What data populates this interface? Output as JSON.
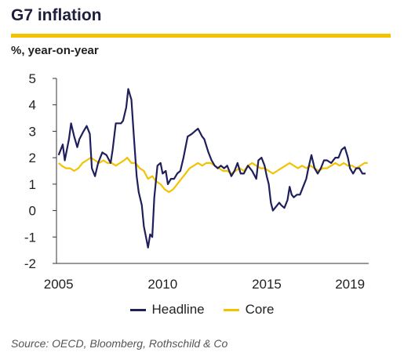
{
  "header": {
    "title": "G7 inflation",
    "subtitle": "%, year-on-year"
  },
  "footer": {
    "source": "Source: OECD, Bloomberg, Rothschild & Co"
  },
  "colors": {
    "headline": "#1f1f5c",
    "core": "#f4c200",
    "rule": "#f4c200",
    "axis": "#333333"
  },
  "chart_data": {
    "type": "line",
    "x_axis": {
      "type": "time",
      "ticks": [
        2005,
        2010,
        2015,
        2019
      ],
      "tick_labels": [
        "2005",
        "2010",
        "2015",
        "2019"
      ],
      "xlim": [
        2004.9,
        2019.9
      ]
    },
    "y_axis": {
      "ticks": [
        5,
        4,
        3,
        2,
        1,
        0,
        -1,
        -2
      ],
      "tick_labels": [
        "5",
        "4",
        "3",
        "2",
        "1",
        "0",
        "-1",
        "-2"
      ],
      "ylim": [
        -2,
        5
      ]
    },
    "grid": false,
    "legend_position": "bottom",
    "series": [
      {
        "name": "Headline",
        "color": "#1f1f5c",
        "points": [
          [
            2005.0,
            2.1
          ],
          [
            2005.2,
            2.5
          ],
          [
            2005.3,
            1.9
          ],
          [
            2005.5,
            2.7
          ],
          [
            2005.6,
            3.3
          ],
          [
            2005.75,
            2.8
          ],
          [
            2005.9,
            2.4
          ],
          [
            2006.0,
            2.7
          ],
          [
            2006.2,
            3.0
          ],
          [
            2006.35,
            3.2
          ],
          [
            2006.5,
            2.9
          ],
          [
            2006.6,
            1.6
          ],
          [
            2006.75,
            1.3
          ],
          [
            2006.9,
            1.8
          ],
          [
            2007.1,
            2.2
          ],
          [
            2007.3,
            2.1
          ],
          [
            2007.5,
            1.8
          ],
          [
            2007.6,
            2.3
          ],
          [
            2007.75,
            3.3
          ],
          [
            2007.9,
            3.3
          ],
          [
            2008.0,
            3.3
          ],
          [
            2008.1,
            3.4
          ],
          [
            2008.25,
            3.9
          ],
          [
            2008.35,
            4.6
          ],
          [
            2008.5,
            4.2
          ],
          [
            2008.6,
            3.0
          ],
          [
            2008.75,
            1.3
          ],
          [
            2008.85,
            0.7
          ],
          [
            2009.0,
            0.2
          ],
          [
            2009.1,
            -0.6
          ],
          [
            2009.2,
            -1.0
          ],
          [
            2009.3,
            -1.4
          ],
          [
            2009.4,
            -0.9
          ],
          [
            2009.5,
            -1.0
          ],
          [
            2009.6,
            0.5
          ],
          [
            2009.75,
            1.7
          ],
          [
            2009.9,
            1.8
          ],
          [
            2010.0,
            1.4
          ],
          [
            2010.15,
            1.5
          ],
          [
            2010.25,
            1.0
          ],
          [
            2010.4,
            1.2
          ],
          [
            2010.55,
            1.2
          ],
          [
            2010.7,
            1.4
          ],
          [
            2010.85,
            1.5
          ],
          [
            2011.0,
            2.0
          ],
          [
            2011.2,
            2.8
          ],
          [
            2011.4,
            2.9
          ],
          [
            2011.55,
            3.0
          ],
          [
            2011.7,
            3.1
          ],
          [
            2011.9,
            2.8
          ],
          [
            2012.0,
            2.7
          ],
          [
            2012.2,
            2.2
          ],
          [
            2012.35,
            1.9
          ],
          [
            2012.5,
            1.7
          ],
          [
            2012.65,
            1.6
          ],
          [
            2012.8,
            1.7
          ],
          [
            2012.95,
            1.6
          ],
          [
            2013.1,
            1.7
          ],
          [
            2013.3,
            1.3
          ],
          [
            2013.45,
            1.5
          ],
          [
            2013.6,
            1.8
          ],
          [
            2013.75,
            1.4
          ],
          [
            2013.9,
            1.4
          ],
          [
            2014.1,
            1.7
          ],
          [
            2014.3,
            1.5
          ],
          [
            2014.5,
            1.2
          ],
          [
            2014.6,
            1.9
          ],
          [
            2014.75,
            2.0
          ],
          [
            2014.9,
            1.7
          ],
          [
            2015.0,
            1.3
          ],
          [
            2015.1,
            1.0
          ],
          [
            2015.2,
            0.3
          ],
          [
            2015.3,
            0.0
          ],
          [
            2015.4,
            0.1
          ],
          [
            2015.5,
            0.2
          ],
          [
            2015.6,
            0.3
          ],
          [
            2015.7,
            0.2
          ],
          [
            2015.85,
            0.1
          ],
          [
            2016.0,
            0.4
          ],
          [
            2016.1,
            0.9
          ],
          [
            2016.2,
            0.6
          ],
          [
            2016.3,
            0.5
          ],
          [
            2016.45,
            0.6
          ],
          [
            2016.6,
            0.6
          ],
          [
            2016.75,
            0.9
          ],
          [
            2016.9,
            1.2
          ],
          [
            2017.0,
            1.6
          ],
          [
            2017.15,
            2.1
          ],
          [
            2017.3,
            1.6
          ],
          [
            2017.45,
            1.4
          ],
          [
            2017.6,
            1.6
          ],
          [
            2017.75,
            1.9
          ],
          [
            2017.9,
            1.9
          ],
          [
            2018.1,
            1.8
          ],
          [
            2018.3,
            2.0
          ],
          [
            2018.45,
            2.0
          ],
          [
            2018.6,
            2.3
          ],
          [
            2018.75,
            2.4
          ],
          [
            2018.9,
            2.0
          ],
          [
            2019.0,
            1.6
          ],
          [
            2019.15,
            1.4
          ],
          [
            2019.3,
            1.6
          ],
          [
            2019.45,
            1.6
          ],
          [
            2019.6,
            1.4
          ],
          [
            2019.75,
            1.4
          ]
        ]
      },
      {
        "name": "Core",
        "color": "#f4c200",
        "points": [
          [
            2005.0,
            1.8
          ],
          [
            2005.15,
            1.7
          ],
          [
            2005.35,
            1.6
          ],
          [
            2005.55,
            1.6
          ],
          [
            2005.75,
            1.5
          ],
          [
            2005.95,
            1.6
          ],
          [
            2006.15,
            1.8
          ],
          [
            2006.35,
            1.9
          ],
          [
            2006.55,
            2.0
          ],
          [
            2006.75,
            1.9
          ],
          [
            2006.95,
            1.8
          ],
          [
            2007.15,
            1.9
          ],
          [
            2007.35,
            1.8
          ],
          [
            2007.55,
            1.8
          ],
          [
            2007.75,
            1.7
          ],
          [
            2007.95,
            1.8
          ],
          [
            2008.15,
            1.9
          ],
          [
            2008.3,
            2.0
          ],
          [
            2008.5,
            1.8
          ],
          [
            2008.7,
            1.8
          ],
          [
            2008.9,
            1.6
          ],
          [
            2009.1,
            1.5
          ],
          [
            2009.3,
            1.2
          ],
          [
            2009.5,
            1.3
          ],
          [
            2009.7,
            1.1
          ],
          [
            2009.9,
            1.0
          ],
          [
            2010.1,
            0.8
          ],
          [
            2010.3,
            0.7
          ],
          [
            2010.5,
            0.8
          ],
          [
            2010.7,
            1.0
          ],
          [
            2010.9,
            1.2
          ],
          [
            2011.1,
            1.4
          ],
          [
            2011.3,
            1.6
          ],
          [
            2011.5,
            1.7
          ],
          [
            2011.7,
            1.8
          ],
          [
            2011.9,
            1.7
          ],
          [
            2012.1,
            1.8
          ],
          [
            2012.3,
            1.8
          ],
          [
            2012.5,
            1.7
          ],
          [
            2012.7,
            1.6
          ],
          [
            2012.9,
            1.5
          ],
          [
            2013.1,
            1.5
          ],
          [
            2013.3,
            1.4
          ],
          [
            2013.5,
            1.5
          ],
          [
            2013.7,
            1.6
          ],
          [
            2013.9,
            1.5
          ],
          [
            2014.1,
            1.7
          ],
          [
            2014.3,
            1.8
          ],
          [
            2014.5,
            1.7
          ],
          [
            2014.7,
            1.6
          ],
          [
            2014.9,
            1.6
          ],
          [
            2015.1,
            1.5
          ],
          [
            2015.3,
            1.4
          ],
          [
            2015.5,
            1.5
          ],
          [
            2015.7,
            1.6
          ],
          [
            2015.9,
            1.7
          ],
          [
            2016.1,
            1.8
          ],
          [
            2016.3,
            1.7
          ],
          [
            2016.5,
            1.6
          ],
          [
            2016.7,
            1.7
          ],
          [
            2016.9,
            1.6
          ],
          [
            2017.1,
            1.7
          ],
          [
            2017.3,
            1.6
          ],
          [
            2017.5,
            1.5
          ],
          [
            2017.7,
            1.6
          ],
          [
            2017.9,
            1.6
          ],
          [
            2018.1,
            1.7
          ],
          [
            2018.3,
            1.8
          ],
          [
            2018.5,
            1.7
          ],
          [
            2018.7,
            1.8
          ],
          [
            2018.9,
            1.7
          ],
          [
            2019.1,
            1.7
          ],
          [
            2019.3,
            1.6
          ],
          [
            2019.5,
            1.7
          ],
          [
            2019.7,
            1.8
          ],
          [
            2019.85,
            1.8
          ]
        ]
      }
    ]
  }
}
